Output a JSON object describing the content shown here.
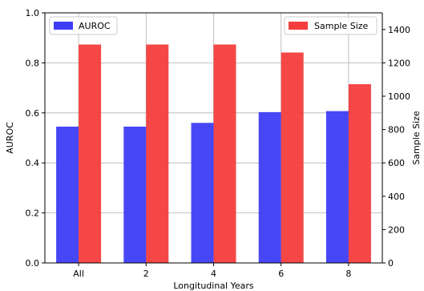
{
  "chart_data": {
    "type": "bar",
    "categories": [
      "All",
      "2",
      "4",
      "6",
      "8"
    ],
    "xlabel": "Longitudinal Years",
    "ylabel_left": "AUROC",
    "ylabel_right": "Sample Size",
    "ylim_left": [
      0,
      1.0
    ],
    "ylim_right": [
      0,
      1500
    ],
    "yticks_left": [
      "0.0",
      "0.2",
      "0.4",
      "0.6",
      "0.8",
      "1.0"
    ],
    "yticks_right": [
      "0",
      "200",
      "400",
      "600",
      "800",
      "1000",
      "1200",
      "1400"
    ],
    "grid": true,
    "series": [
      {
        "name": "AUROC",
        "axis": "left",
        "color": "#3d3df5",
        "values": [
          0.545,
          0.545,
          0.56,
          0.603,
          0.607
        ]
      },
      {
        "name": "Sample Size",
        "axis": "right",
        "color": "#f53d3d",
        "values": [
          1310,
          1310,
          1310,
          1262,
          1072
        ]
      }
    ],
    "legend": [
      {
        "label": "AUROC",
        "placement": "top-left"
      },
      {
        "label": "Sample Size",
        "placement": "top-right"
      }
    ]
  }
}
